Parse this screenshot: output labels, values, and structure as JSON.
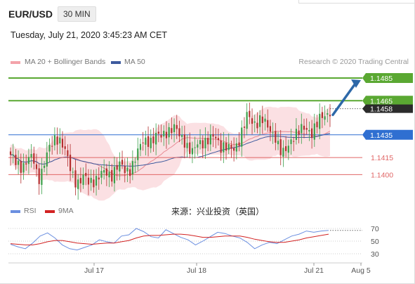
{
  "header": {
    "symbol": "EUR/USD",
    "timeframe": "30 MIN",
    "datetime": "Tuesday, July 21, 2020 3:45:23 AM CET"
  },
  "legend": {
    "ma20": "MA 20 + Bollinger Bands",
    "ma50": "MA 50",
    "research": "Research © 2020 Trading Central",
    "rsi": "RSI",
    "rsi_ma": "9MA"
  },
  "watermark": "来源：兴业投资（英国）",
  "colors": {
    "resistance": "#5aa832",
    "pivot": "#2f6fd1",
    "support": "#e06666",
    "last": "#2b2b2b",
    "candle_up": "#3aa04a",
    "candle_down": "#b42e2e",
    "bollinger": "#f7c6cc",
    "ma20": "#e88a94",
    "ma50": "#3d5a9e",
    "arrow": "#2d68a8",
    "rsi": "#6b8fe0",
    "rsi_ma": "#d22222"
  },
  "chart_data": [
    {
      "type": "candlestick",
      "title": "EUR/USD 30 MIN",
      "price_range": [
        1.1378,
        1.1493
      ],
      "levels": [
        {
          "label": "1.1485",
          "value": 1.1485,
          "kind": "resistance"
        },
        {
          "label": "1.1465",
          "value": 1.1465,
          "kind": "resistance"
        },
        {
          "label": "1.1458",
          "value": 1.1458,
          "kind": "last_price"
        },
        {
          "label": "1.1435",
          "value": 1.1435,
          "kind": "pivot"
        },
        {
          "label": "1.1415",
          "value": 1.1415,
          "kind": "support"
        },
        {
          "label": "1.1400",
          "value": 1.14,
          "kind": "support"
        }
      ],
      "x_ticks": [
        "Jul 17",
        "Jul 18",
        "Jul 21",
        "Aug 5"
      ],
      "close_path": [
        1.1414,
        1.1412,
        1.141,
        1.1408,
        1.1412,
        1.1415,
        1.1398,
        1.1404,
        1.1416,
        1.1427,
        1.1436,
        1.1429,
        1.1418,
        1.1407,
        1.1398,
        1.1392,
        1.1396,
        1.1394,
        1.1397,
        1.1396,
        1.1399,
        1.1402,
        1.1401,
        1.1405,
        1.1407,
        1.1404,
        1.1406,
        1.141,
        1.1419,
        1.143,
        1.1433,
        1.1428,
        1.1432,
        1.1435,
        1.144,
        1.1438,
        1.1439,
        1.1436,
        1.1433,
        1.1421,
        1.1417,
        1.1429,
        1.1431,
        1.1428,
        1.143,
        1.1434,
        1.1427,
        1.1424,
        1.142,
        1.1423,
        1.1432,
        1.1441,
        1.1451,
        1.1446,
        1.1448,
        1.1449,
        1.1441,
        1.1439,
        1.1436,
        1.142,
        1.1416,
        1.1428,
        1.1436,
        1.1437,
        1.1438,
        1.1441,
        1.1439,
        1.1443,
        1.1448,
        1.1453,
        1.1458
      ]
    },
    {
      "type": "line",
      "title": "RSI",
      "ylim": [
        20,
        80
      ],
      "y_ticks": [
        70,
        50,
        30
      ],
      "series": [
        {
          "name": "RSI",
          "values": [
            45,
            41,
            38,
            47,
            58,
            63,
            55,
            44,
            38,
            36,
            40,
            44,
            52,
            49,
            47,
            58,
            60,
            70,
            65,
            57,
            55,
            68,
            62,
            56,
            52,
            44,
            50,
            57,
            64,
            62,
            58,
            55,
            48,
            38,
            44,
            48,
            46,
            52,
            58,
            61,
            66,
            64,
            66,
            67
          ]
        },
        {
          "name": "9MA",
          "values": [
            46,
            45,
            44,
            44,
            46,
            49,
            51,
            51,
            49,
            47,
            46,
            45,
            46,
            47,
            47,
            49,
            51,
            55,
            58,
            59,
            59,
            60,
            61,
            61,
            60,
            58,
            56,
            56,
            57,
            58,
            58,
            58,
            56,
            53,
            51,
            49,
            48,
            48,
            50,
            52,
            55,
            57,
            59,
            61
          ]
        }
      ]
    }
  ]
}
